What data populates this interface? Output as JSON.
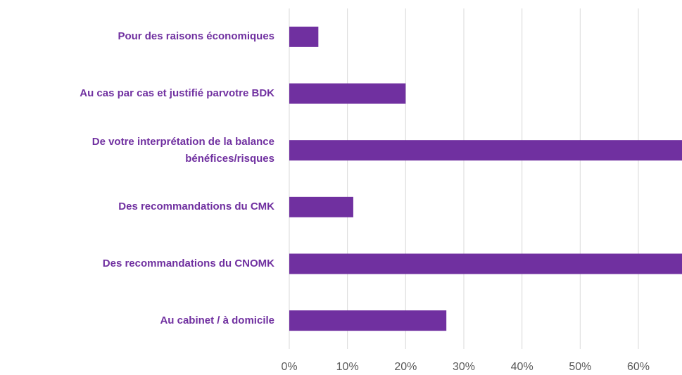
{
  "chart_data": {
    "type": "bar",
    "orientation": "horizontal",
    "categories": [
      "Pour des raisons économiques",
      "Au cas par cas et justifié parvotre BDK",
      "De votre interprétation de la balance bénéfices/risques",
      "Des recommandations du CMK",
      "Des recommandations du CNOMK",
      "Au cabinet / à domicile"
    ],
    "values": [
      5,
      20,
      68,
      11,
      68,
      27
    ],
    "color": "#7030a0",
    "xlim": [
      0,
      67.5
    ],
    "xticks": [
      {
        "value": 0,
        "label": "0%"
      },
      {
        "value": 10,
        "label": "10%"
      },
      {
        "value": 20,
        "label": "20%"
      },
      {
        "value": 30,
        "label": "30%"
      },
      {
        "value": 40,
        "label": "40%"
      },
      {
        "value": 50,
        "label": "50%"
      },
      {
        "value": 60,
        "label": "60%"
      }
    ],
    "grid": true
  }
}
